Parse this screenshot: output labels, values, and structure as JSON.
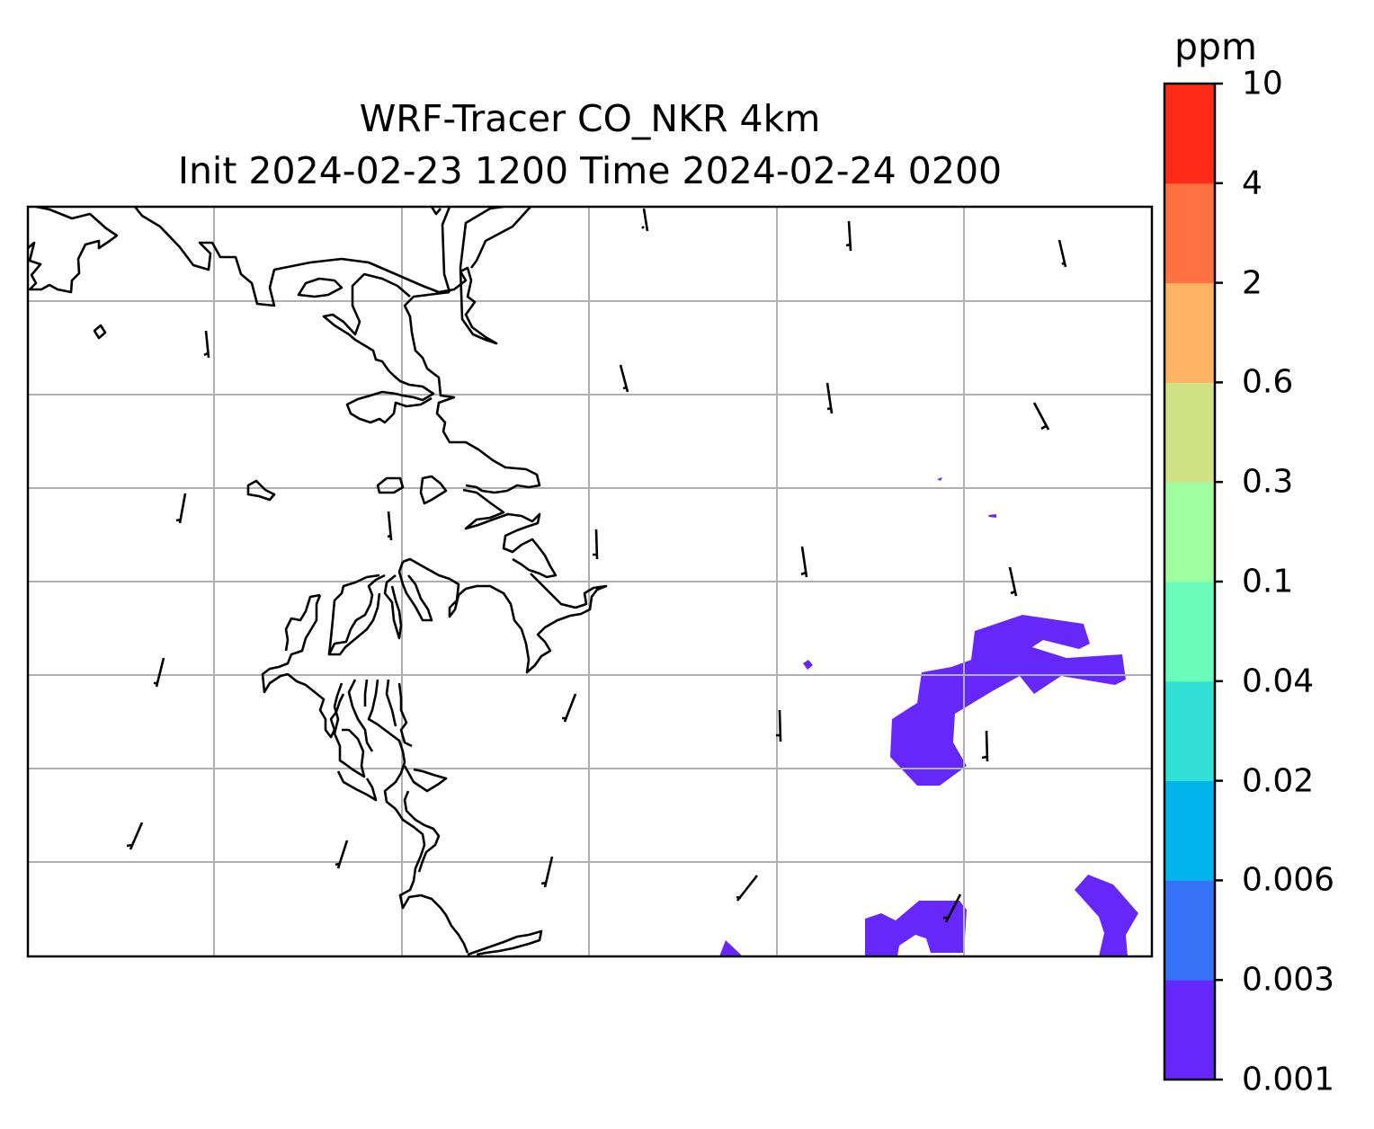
{
  "map": {
    "title_line1": "WRF-Tracer CO_NKR 4km",
    "title_line2": "Init 2024-02-23 1200 Time 2024-02-24 0200",
    "background": "#ffffff",
    "coastline_color": "#000000",
    "gridline_color": "#b0b0b0",
    "tracer_fill_color": "#6628fa"
  },
  "colorbar": {
    "unit": "ppm",
    "tick_labels": [
      "0.001",
      "0.003",
      "0.006",
      "0.02",
      "0.04",
      "0.1",
      "0.3",
      "0.6",
      "2",
      "4",
      "10"
    ],
    "colors": [
      "#6628fa",
      "#3572f5",
      "#00b5ea",
      "#32e0d6",
      "#6afcba",
      "#9efea0",
      "#d1e286",
      "#feb462",
      "#ff7141",
      "#ff2a18"
    ]
  }
}
